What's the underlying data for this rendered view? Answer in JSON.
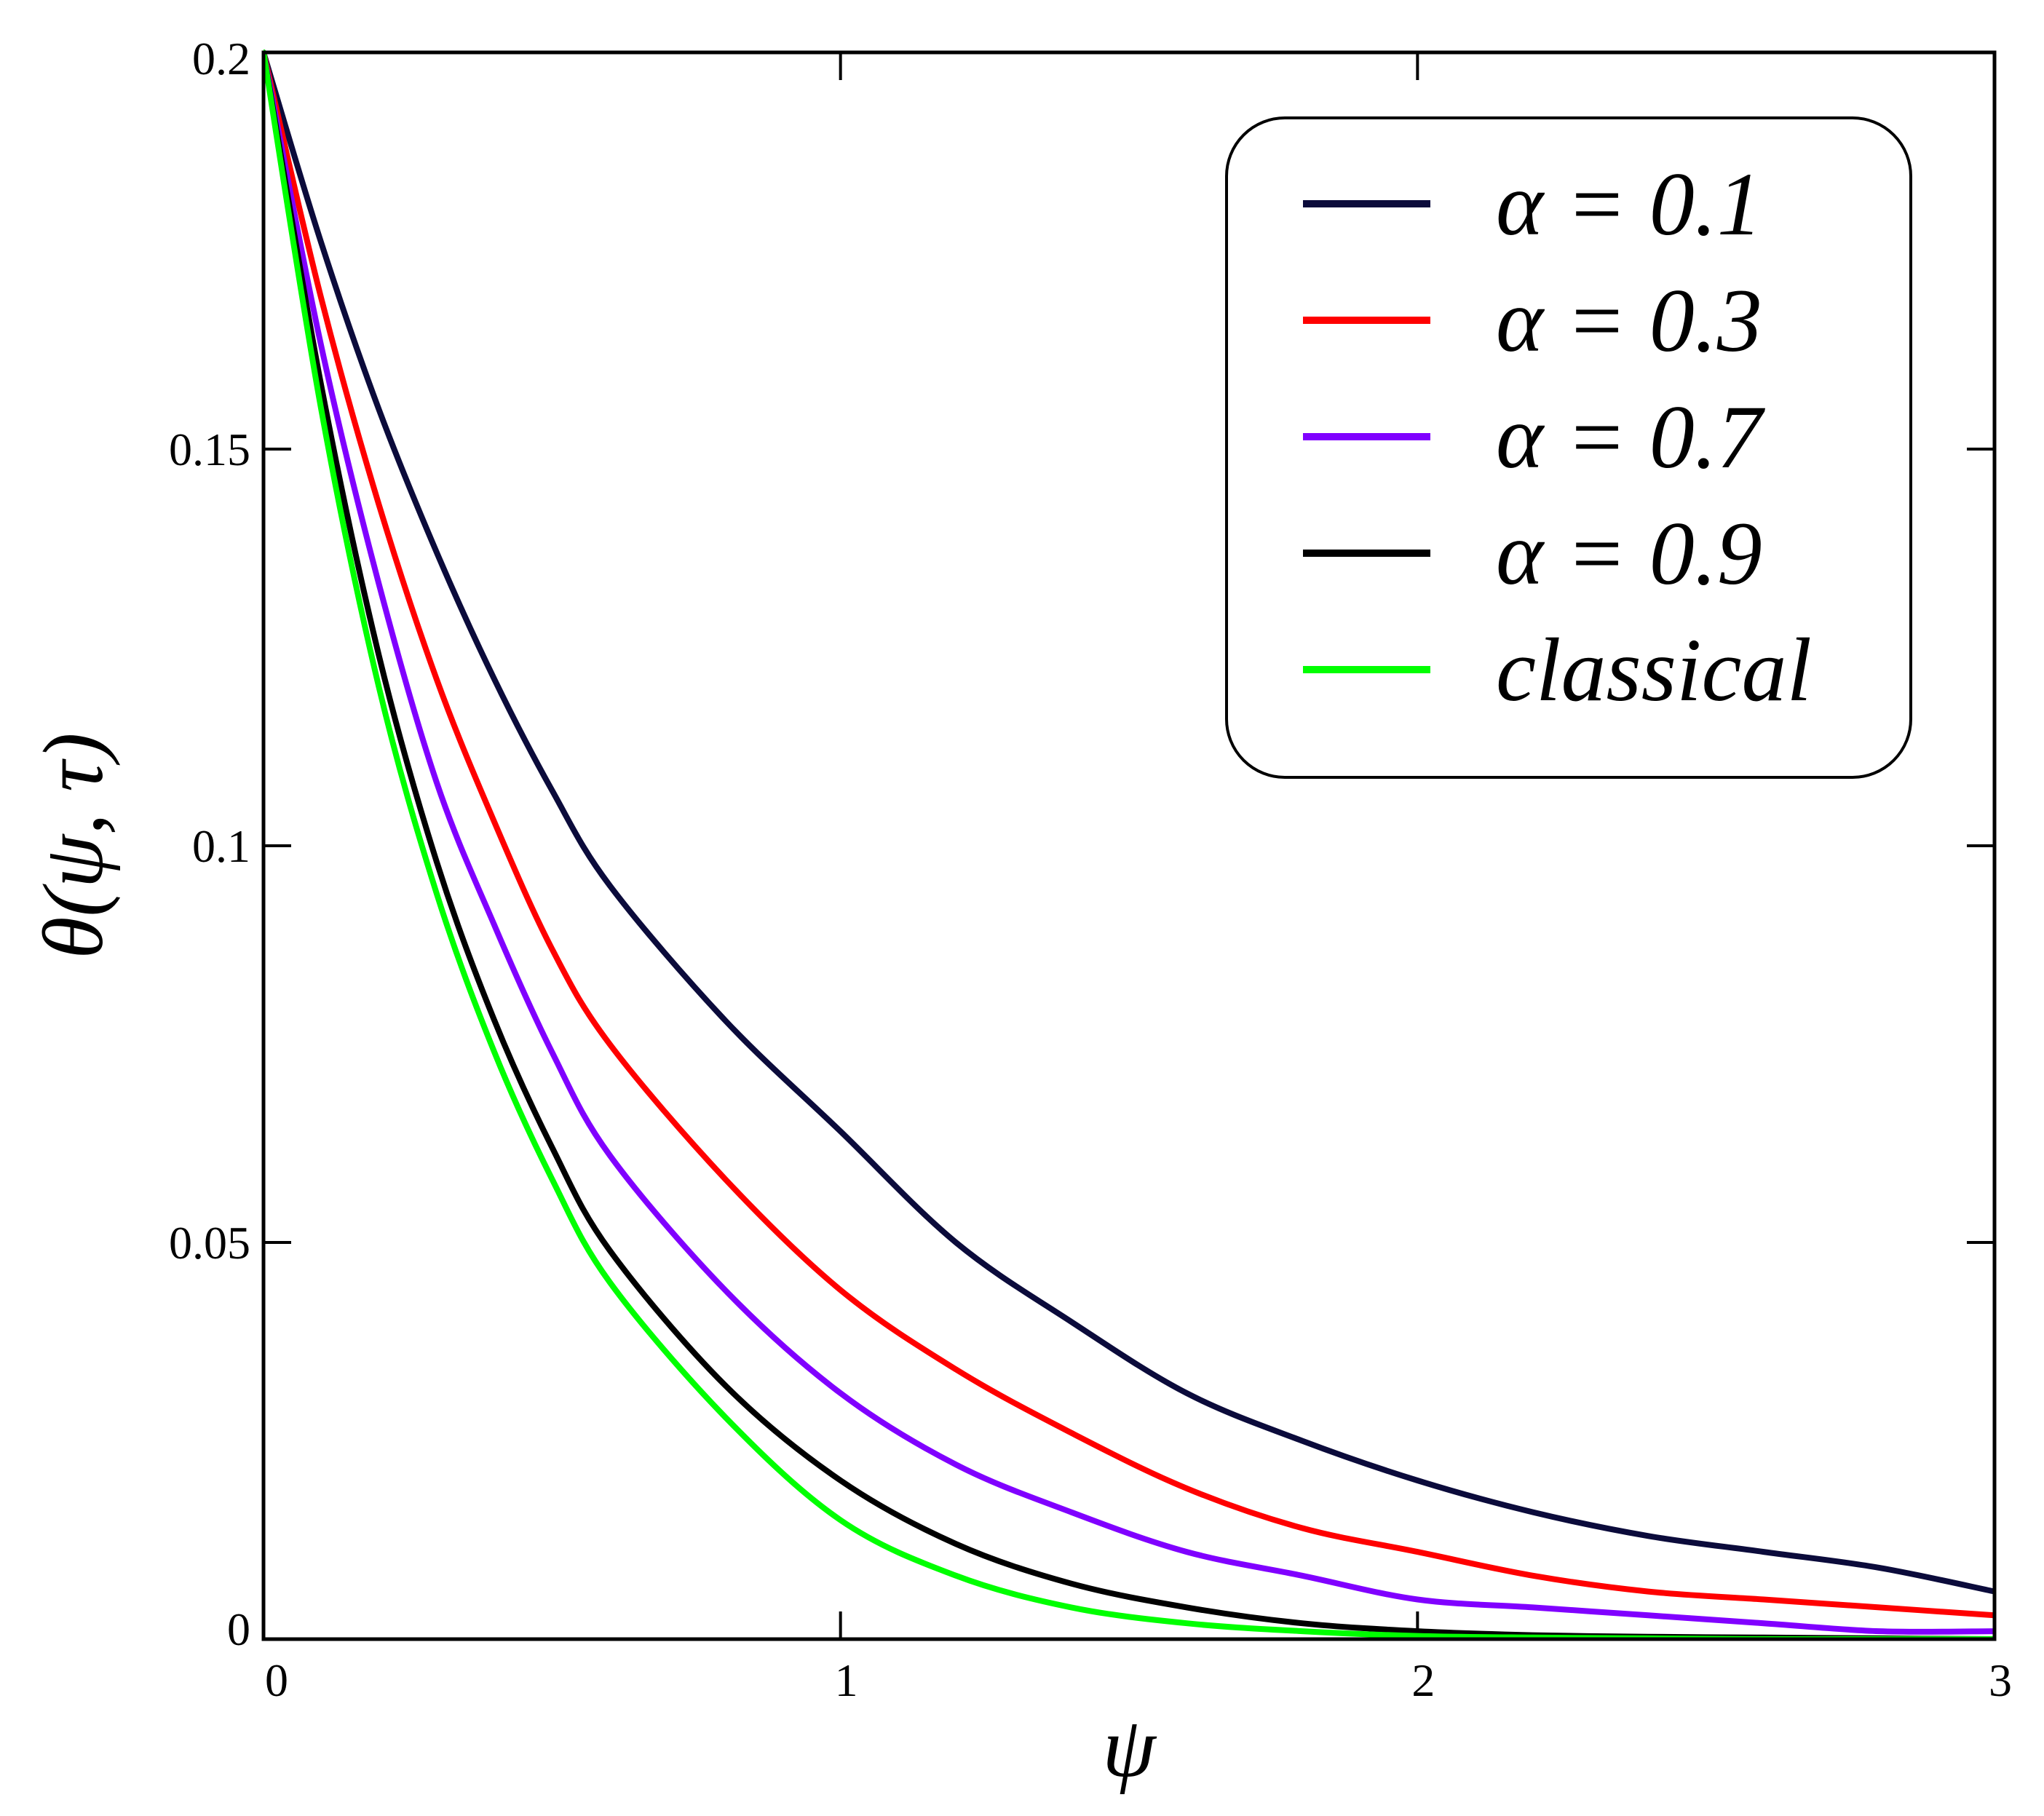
{
  "chart_data": {
    "type": "line",
    "xlabel": "ψ",
    "ylabel": "θ(ψ, τ)",
    "xlim": [
      0,
      3
    ],
    "ylim": [
      0,
      0.2
    ],
    "x_ticks": [
      {
        "value": 0,
        "label": "0"
      },
      {
        "value": 1,
        "label": "1"
      },
      {
        "value": 2,
        "label": "2"
      },
      {
        "value": 3,
        "label": "3"
      }
    ],
    "y_ticks": [
      {
        "value": 0,
        "label": "0"
      },
      {
        "value": 0.05,
        "label": "0.05"
      },
      {
        "value": 0.1,
        "label": "0.1"
      },
      {
        "value": 0.15,
        "label": "0.15"
      },
      {
        "value": 0.2,
        "label": "0.2"
      }
    ],
    "grid": false,
    "legend_position": "top-right",
    "x": [
      0,
      0.1,
      0.2,
      0.3,
      0.4,
      0.5,
      0.6,
      0.8,
      1.0,
      1.2,
      1.4,
      1.6,
      1.8,
      2.0,
      2.2,
      2.4,
      2.6,
      2.8,
      3.0
    ],
    "series": [
      {
        "name": "α = 0.1",
        "color": "#0b0b3b",
        "values": [
          0.2,
          0.176,
          0.155,
          0.137,
          0.121,
          0.107,
          0.095,
          0.078,
          0.064,
          0.05,
          0.04,
          0.031,
          0.025,
          0.02,
          0.016,
          0.013,
          0.011,
          0.009,
          0.006
        ]
      },
      {
        "name": "α = 0.3",
        "color": "#ff0000",
        "values": [
          0.2,
          0.169,
          0.143,
          0.121,
          0.103,
          0.087,
          0.075,
          0.058,
          0.044,
          0.034,
          0.026,
          0.019,
          0.014,
          0.011,
          0.008,
          0.006,
          0.005,
          0.004,
          0.003
        ]
      },
      {
        "name": "α = 0.7",
        "color": "#8000ff",
        "values": [
          0.2,
          0.163,
          0.133,
          0.108,
          0.09,
          0.074,
          0.061,
          0.044,
          0.031,
          0.022,
          0.016,
          0.011,
          0.008,
          0.005,
          0.004,
          0.003,
          0.002,
          0.001,
          0.001
        ]
      },
      {
        "name": "α = 0.9",
        "color": "#000000",
        "values": [
          0.2,
          0.158,
          0.124,
          0.098,
          0.078,
          0.062,
          0.049,
          0.032,
          0.02,
          0.012,
          0.007,
          0.004,
          0.002,
          0.001,
          0.0005,
          0.0003,
          0.0002,
          0.0001,
          0.0
        ]
      },
      {
        "name": "classical",
        "color": "#00ff00",
        "values": [
          0.2,
          0.155,
          0.12,
          0.094,
          0.074,
          0.058,
          0.045,
          0.028,
          0.015,
          0.008,
          0.004,
          0.002,
          0.001,
          0.0004,
          0.0002,
          0.0001,
          0.0,
          0.0,
          0.0
        ]
      }
    ]
  }
}
